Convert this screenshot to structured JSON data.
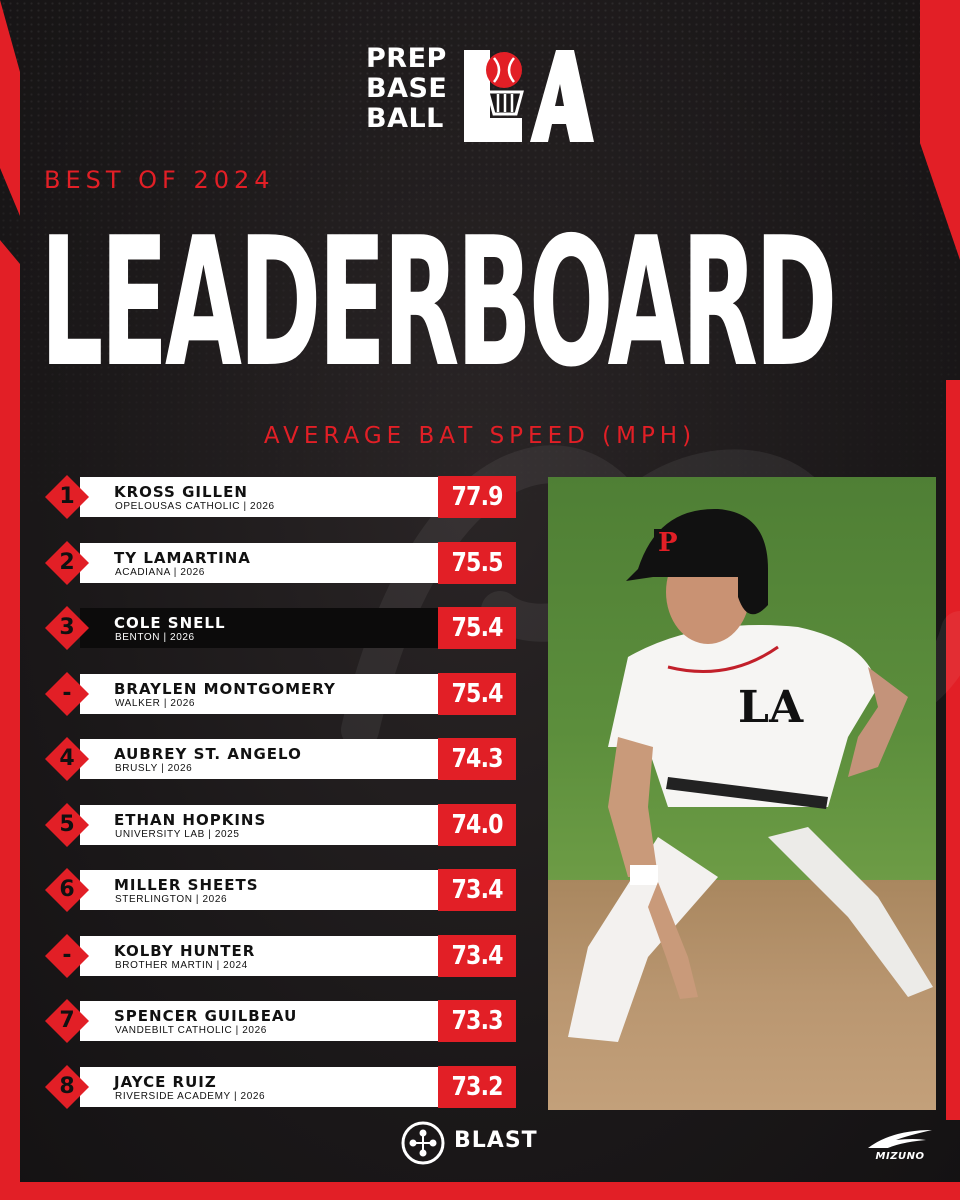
{
  "brand": {
    "logo_lines": [
      "PREP",
      "BASE",
      "BALL"
    ],
    "logo_region": "LA",
    "accent": "#e21f26"
  },
  "subtitle": "BEST OF 2024",
  "title": "LEADERBOARD",
  "metric": "AVERAGE BAT SPEED (MPH)",
  "rows": [
    {
      "rank": "1",
      "name": "KROSS GILLEN",
      "school": "OPELOUSAS CATHOLIC | 2026",
      "value": "77.9",
      "highlight": false
    },
    {
      "rank": "2",
      "name": "TY LAMARTINA",
      "school": "ACADIANA | 2026",
      "value": "75.5",
      "highlight": false
    },
    {
      "rank": "3",
      "name": "COLE SNELL",
      "school": "BENTON | 2026",
      "value": "75.4",
      "highlight": true
    },
    {
      "rank": "-",
      "name": "BRAYLEN MONTGOMERY",
      "school": "WALKER | 2026",
      "value": "75.4",
      "highlight": false
    },
    {
      "rank": "4",
      "name": "AUBREY ST. ANGELO",
      "school": "BRUSLY | 2026",
      "value": "74.3",
      "highlight": false
    },
    {
      "rank": "5",
      "name": "ETHAN HOPKINS",
      "school": "UNIVERSITY LAB | 2025",
      "value": "74.0",
      "highlight": false
    },
    {
      "rank": "6",
      "name": "MILLER SHEETS",
      "school": "STERLINGTON | 2026",
      "value": "73.4",
      "highlight": false
    },
    {
      "rank": "-",
      "name": "KOLBY HUNTER",
      "school": "BROTHER MARTIN | 2024",
      "value": "73.4",
      "highlight": false
    },
    {
      "rank": "7",
      "name": "SPENCER GUILBEAU",
      "school": "VANDEBILT CATHOLIC | 2026",
      "value": "73.3",
      "highlight": false
    },
    {
      "rank": "8",
      "name": "JAYCE RUIZ",
      "school": "RIVERSIDE ACADEMY | 2026",
      "value": "73.2",
      "highlight": false
    }
  ],
  "photo": {
    "icon": "baseball-player-photo",
    "helmet_letter": "P",
    "jersey_text": "LA"
  },
  "sponsors": {
    "blast": "BLAST",
    "mizuno": "MIZUNO"
  }
}
